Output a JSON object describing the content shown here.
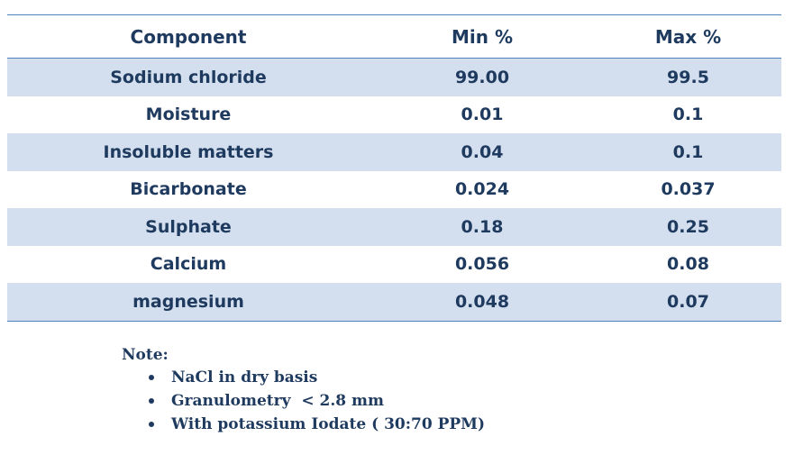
{
  "table": {
    "headers": [
      "Component",
      "Min %",
      "Max %"
    ],
    "rows": [
      [
        "Sodium chloride",
        "99.00",
        "99.5"
      ],
      [
        "Moisture",
        "0.01",
        "0.1"
      ],
      [
        "Insoluble matters",
        "0.04",
        "0.1"
      ],
      [
        "Bicarbonate",
        "0.024",
        "0.037"
      ],
      [
        "Sulphate",
        "0.18",
        "0.25"
      ],
      [
        "Calcium",
        "0.056",
        "0.08"
      ],
      [
        "magnesium",
        "0.048",
        "0.07"
      ]
    ]
  },
  "note": {
    "title": "Note:",
    "items": [
      "NaCl in dry basis",
      "Granulometry  < 2.8 mm",
      "With potassium Iodate ( 30:70 PPM)"
    ]
  },
  "colors": {
    "text": "#1f3a5f",
    "row_shade": "#d3dfee",
    "rule": "#4f81bd"
  }
}
